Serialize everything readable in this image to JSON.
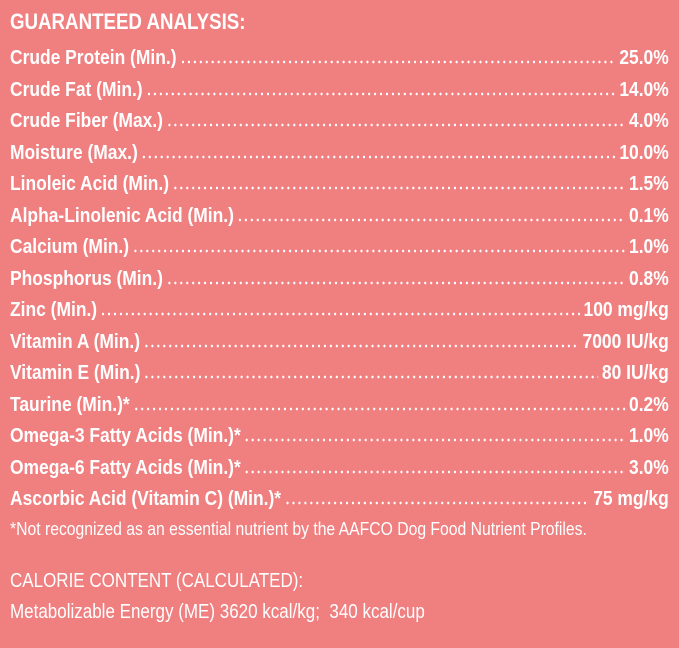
{
  "header": {
    "title": "GUARANTEED ANALYSIS:"
  },
  "table": {
    "rows": [
      [
        "Crude Protein (Min.)",
        "25.0%"
      ],
      [
        "Crude Fat (Min.)",
        "14.0%"
      ],
      [
        "Crude Fiber (Max.)",
        "4.0%"
      ],
      [
        "Moisture (Max.)",
        "10.0%"
      ],
      [
        "Linoleic Acid (Min.)",
        "1.5%"
      ],
      [
        "Alpha-Linolenic Acid (Min.)",
        "0.1%"
      ],
      [
        "Calcium (Min.)",
        "1.0%"
      ],
      [
        "Phosphorus (Min.)",
        "0.8%"
      ],
      [
        "Zinc (Min.)",
        "100 mg/kg"
      ],
      [
        "Vitamin A (Min.)",
        "7000 IU/kg"
      ],
      [
        "Vitamin E (Min.)",
        "80 IU/kg"
      ],
      [
        "Taurine (Min.)*",
        "0.2%"
      ],
      [
        "Omega-3 Fatty Acids (Min.)*",
        "1.0%"
      ],
      [
        "Omega-6 Fatty Acids (Min.)*",
        "3.0%"
      ],
      [
        "Ascorbic Acid (Vitamin C) (Min.)*",
        "75 mg/kg"
      ]
    ]
  },
  "footnote": "*Not recognized as an essential nutrient by the AAFCO Dog Food Nutrient Profiles.",
  "calorie": {
    "title": "CALORIE CONTENT (CALCULATED):",
    "text": "Metabolizable Energy (ME) 3620 kcal/kg;  340 kcal/cup"
  }
}
